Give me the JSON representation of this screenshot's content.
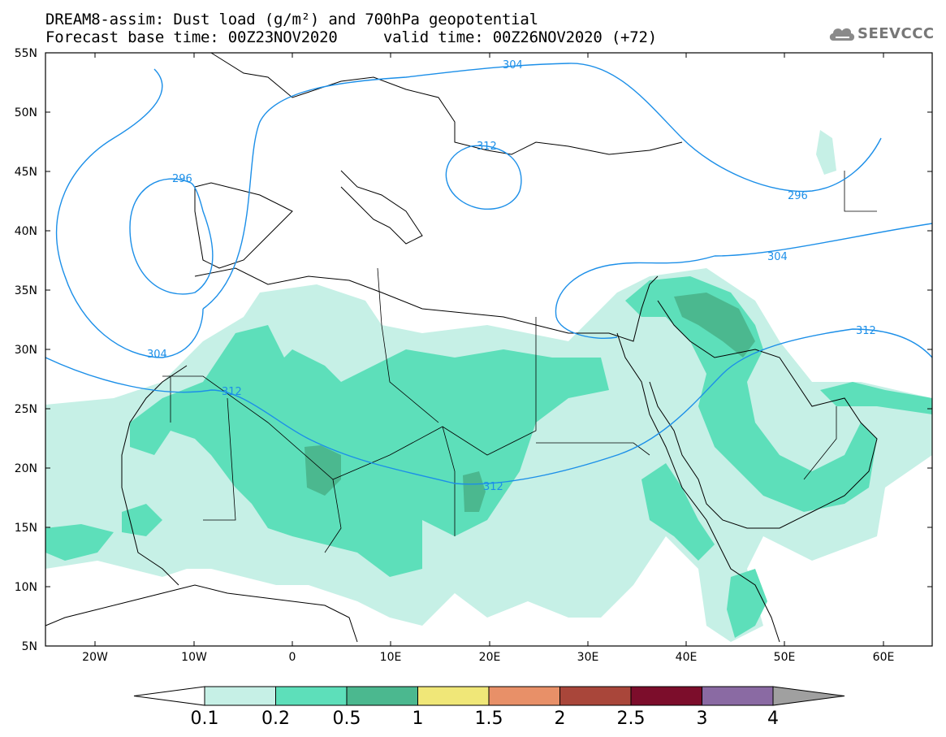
{
  "header": {
    "title_line1": "DREAM8-assim: Dust load (g/m²) and 700hPa geopotential",
    "title_line2": "Forecast base time: 00Z23NOV2020     valid time: 00Z26NOV2020 (+72)"
  },
  "logo": {
    "text": "SEEVCCC"
  },
  "axes": {
    "lon_labels": [
      "20W",
      "10W",
      "0",
      "10E",
      "20E",
      "30E",
      "40E",
      "50E",
      "60E"
    ],
    "lat_labels": [
      "55N",
      "50N",
      "45N",
      "40N",
      "35N",
      "30N",
      "25N",
      "20N",
      "15N",
      "10N",
      "5N"
    ]
  },
  "contours": {
    "labels": [
      "304",
      "312",
      "296",
      "304",
      "312",
      "296",
      "304",
      "312",
      "312"
    ]
  },
  "colorbar": {
    "labels": [
      "0.1",
      "0.2",
      "0.5",
      "1",
      "1.5",
      "2",
      "2.5",
      "3",
      "4"
    ],
    "colors": [
      "#c6f0e6",
      "#5ddfba",
      "#4bb88f",
      "#f0e778",
      "#e89068",
      "#a9463a",
      "#7c0d2b",
      "#8a6aa3",
      "#a0a0a0"
    ]
  }
}
